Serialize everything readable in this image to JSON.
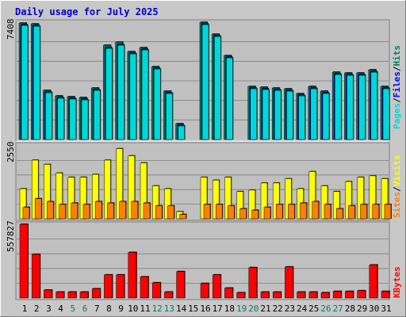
{
  "chart_data": [
    {
      "type": "bar",
      "title": "Daily usage for July 2025",
      "y_max_label": "7408",
      "ylim": [
        0,
        7408
      ],
      "legend_position": "right",
      "legend": [
        {
          "name": "Pages",
          "color": "#00d8d8"
        },
        {
          "name": "Files",
          "color": "#0000ff"
        },
        {
          "name": "Hits",
          "color": "#008060"
        }
      ],
      "categories": [
        "1",
        "2",
        "3",
        "4",
        "5",
        "6",
        "7",
        "8",
        "9",
        "10",
        "11",
        "12",
        "13",
        "14",
        "15",
        "16",
        "17",
        "18",
        "19",
        "20",
        "21",
        "22",
        "23",
        "24",
        "25",
        "26",
        "27",
        "28",
        "29",
        "30",
        "31"
      ],
      "series": [
        {
          "name": "Hits",
          "values": [
            7350,
            7300,
            3100,
            2750,
            2700,
            2650,
            3250,
            5950,
            6150,
            5550,
            5800,
            4600,
            3050,
            1000,
            null,
            7400,
            6650,
            5300,
            null,
            3350,
            3300,
            3250,
            3200,
            2900,
            3350,
            3050,
            4250,
            4200,
            4200,
            4400,
            3350
          ]
        },
        {
          "name": "Files",
          "values": [
            7250,
            7200,
            3000,
            2650,
            2600,
            2550,
            3150,
            5800,
            6000,
            5450,
            5700,
            4500,
            2950,
            900,
            null,
            7300,
            6550,
            5200,
            null,
            3250,
            3200,
            3150,
            3100,
            2800,
            3250,
            2950,
            4150,
            4100,
            4100,
            4300,
            3250
          ]
        },
        {
          "name": "Pages",
          "values": [
            7200,
            7150,
            2950,
            2600,
            2550,
            2500,
            3100,
            5750,
            5950,
            5400,
            5650,
            4450,
            2900,
            850,
            null,
            7250,
            6500,
            5150,
            null,
            3200,
            3150,
            3100,
            3050,
            2750,
            3200,
            2900,
            4100,
            4050,
            4050,
            4250,
            3200
          ]
        }
      ]
    },
    {
      "type": "bar",
      "y_max_label": "2550",
      "ylim": [
        0,
        2550
      ],
      "legend_position": "right",
      "legend": [
        {
          "name": "Sites",
          "color": "#ff8000"
        },
        {
          "name": "Visits",
          "color": "#ffff00"
        }
      ],
      "categories": [
        "1",
        "2",
        "3",
        "4",
        "5",
        "6",
        "7",
        "8",
        "9",
        "10",
        "11",
        "12",
        "13",
        "14",
        "15",
        "16",
        "17",
        "18",
        "19",
        "20",
        "21",
        "22",
        "23",
        "24",
        "25",
        "26",
        "27",
        "28",
        "29",
        "30",
        "31"
      ],
      "series": [
        {
          "name": "Visits",
          "values": [
            1050,
            2050,
            1900,
            1600,
            1450,
            1450,
            1550,
            2050,
            2450,
            2200,
            1950,
            1150,
            1050,
            250,
            null,
            1450,
            1350,
            1450,
            950,
            1000,
            1250,
            1250,
            1400,
            1050,
            1650,
            1150,
            950,
            1300,
            1450,
            1500,
            1400
          ]
        },
        {
          "name": "Sites",
          "values": [
            400,
            700,
            600,
            500,
            550,
            500,
            600,
            550,
            600,
            600,
            550,
            450,
            450,
            150,
            null,
            500,
            500,
            450,
            350,
            300,
            400,
            500,
            500,
            550,
            600,
            500,
            350,
            450,
            500,
            500,
            500
          ]
        }
      ]
    },
    {
      "type": "bar",
      "y_max_label": "557827",
      "ylim": [
        0,
        557827
      ],
      "legend_position": "right",
      "legend": [
        {
          "name": "KBytes",
          "color": "#ff0000"
        }
      ],
      "categories": [
        "1",
        "2",
        "3",
        "4",
        "5",
        "6",
        "7",
        "8",
        "9",
        "10",
        "11",
        "12",
        "13",
        "14",
        "15",
        "16",
        "17",
        "18",
        "19",
        "20",
        "21",
        "22",
        "23",
        "24",
        "25",
        "26",
        "27",
        "28",
        "29",
        "30",
        "31"
      ],
      "weekend_days": [
        "5",
        "6",
        "12",
        "13",
        "19",
        "20",
        "26",
        "27"
      ],
      "series": [
        {
          "name": "KBytes",
          "values": [
            557827,
            330000,
            60000,
            45000,
            45000,
            45000,
            70000,
            175000,
            175000,
            345000,
            160000,
            115000,
            45000,
            200000,
            null,
            110000,
            175000,
            75000,
            40000,
            230000,
            45000,
            45000,
            235000,
            45000,
            45000,
            40000,
            50000,
            50000,
            55000,
            250000,
            50000
          ]
        }
      ]
    }
  ]
}
